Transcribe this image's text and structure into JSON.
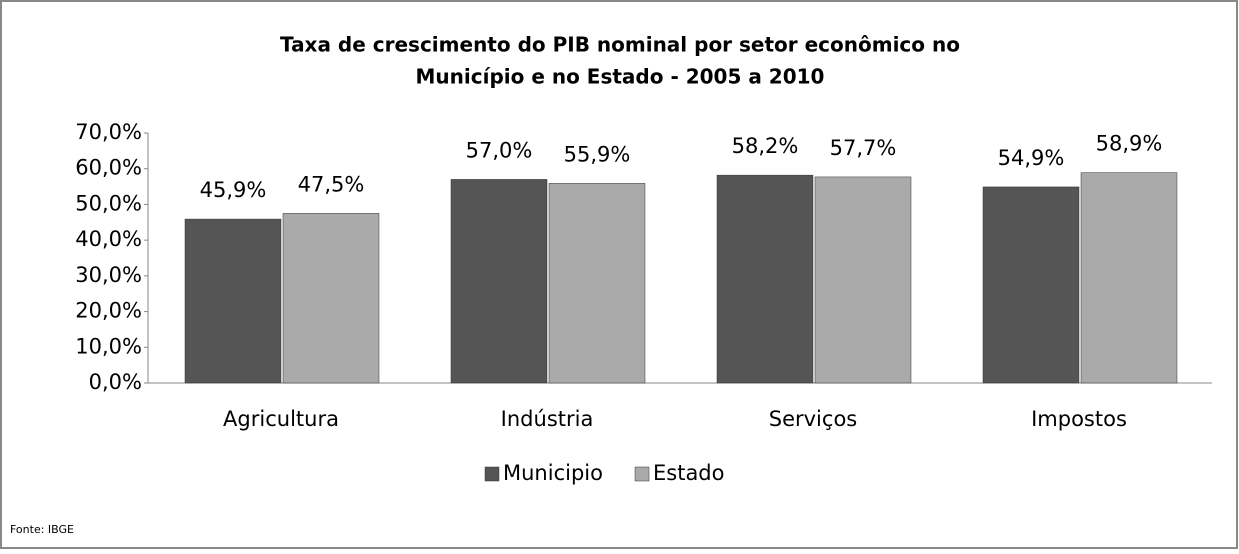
{
  "chart_data": {
    "type": "bar",
    "title": [
      "Taxa de crescimento do PIB nominal por setor econômico no",
      "Município e no Estado - 2005 a 2010"
    ],
    "categories": [
      "Agricultura",
      "Indústria",
      "Serviços",
      "Impostos"
    ],
    "series": [
      {
        "name": "Municipio",
        "color": "#555555",
        "values": [
          45.9,
          57.0,
          58.2,
          54.9
        ],
        "value_labels": [
          "45,9%",
          "57,0%",
          "58,2%",
          "54,9%"
        ]
      },
      {
        "name": "Estado",
        "color": "#aaaaaa",
        "values": [
          47.5,
          55.9,
          57.7,
          58.9
        ],
        "value_labels": [
          "47,5%",
          "55,9%",
          "57,7%",
          "58,9%"
        ]
      }
    ],
    "ylim": [
      0,
      70
    ],
    "yticks": [
      {
        "value": 0,
        "label": "0,0%"
      },
      {
        "value": 10,
        "label": "10,0%"
      },
      {
        "value": 20,
        "label": "20,0%"
      },
      {
        "value": 30,
        "label": "30,0%"
      },
      {
        "value": 40,
        "label": "40,0%"
      },
      {
        "value": 50,
        "label": "50,0%"
      },
      {
        "value": 60,
        "label": "60,0%"
      },
      {
        "value": 70,
        "label": "70,0%"
      }
    ],
    "legend": "bottom",
    "source": "Fonte: IBGE"
  }
}
